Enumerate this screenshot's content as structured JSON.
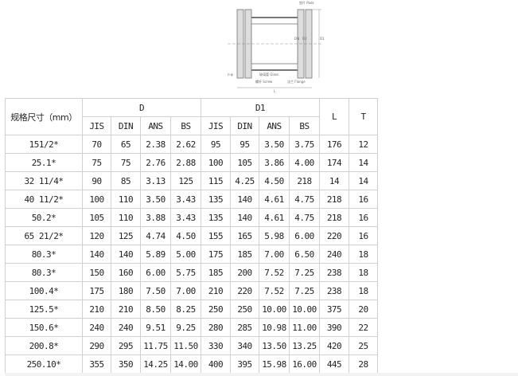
{
  "drawing": {
    "labels": {
      "pads": "垫片 Pads",
      "glass": "玻璃管 Glass",
      "screw": "螺杆 Screw",
      "flange": "法兰 Flange",
      "dn": "DN",
      "d2": "D2",
      "d1": "D1",
      "l": "L",
      "holes": "n-φ"
    }
  },
  "table": {
    "spec_header": "规格尺寸（mm）",
    "group_d": "D",
    "group_d1": "D1",
    "col_l": "L",
    "col_t": "T",
    "sub_headers": [
      "JIS",
      "DIN",
      "ANS",
      "BS",
      "JIS",
      "DIN",
      "ANS",
      "BS"
    ],
    "rows": [
      [
        "151/2*",
        "70",
        "65",
        "2.38",
        "2.62",
        "95",
        "95",
        "3.50",
        "3.75",
        "176",
        "12"
      ],
      [
        "25.1*",
        "75",
        "75",
        "2.76",
        "2.88",
        "100",
        "105",
        "3.86",
        "4.00",
        "174",
        "14"
      ],
      [
        "32 11/4*",
        "90",
        "85",
        "3.13",
        "125",
        "115",
        "4.25",
        "4.50",
        "218",
        "14",
        "14"
      ],
      [
        "40 11/2*",
        "100",
        "110",
        "3.50",
        "3.43",
        "135",
        "140",
        "4.61",
        "4.75",
        "218",
        "16"
      ],
      [
        "50.2*",
        "105",
        "110",
        "3.88",
        "3.43",
        "135",
        "140",
        "4.61",
        "4.75",
        "218",
        "16"
      ],
      [
        "65 21/2*",
        "120",
        "125",
        "4.74",
        "4.50",
        "155",
        "165",
        "5.98",
        "6.00",
        "220",
        "16"
      ],
      [
        "80.3*",
        "140",
        "140",
        "5.89",
        "5.00",
        "175",
        "185",
        "7.00",
        "6.50",
        "240",
        "18"
      ],
      [
        "80.3*",
        "150",
        "160",
        "6.00",
        "5.75",
        "185",
        "200",
        "7.52",
        "7.25",
        "238",
        "18"
      ],
      [
        "100.4*",
        "175",
        "180",
        "7.50",
        "7.00",
        "210",
        "220",
        "7.52",
        "7.25",
        "238",
        "18"
      ],
      [
        "125.5*",
        "210",
        "210",
        "8.50",
        "8.25",
        "250",
        "250",
        "10.00",
        "10.00",
        "375",
        "20"
      ],
      [
        "150.6*",
        "240",
        "240",
        "9.51",
        "9.25",
        "280",
        "285",
        "10.98",
        "11.00",
        "390",
        "22"
      ],
      [
        "200.8*",
        "290",
        "295",
        "11.75",
        "11.50",
        "330",
        "340",
        "13.50",
        "13.25",
        "420",
        "25"
      ],
      [
        "250.10*",
        "355",
        "350",
        "14.25",
        "14.00",
        "400",
        "395",
        "15.98",
        "16.00",
        "445",
        "28"
      ]
    ]
  }
}
